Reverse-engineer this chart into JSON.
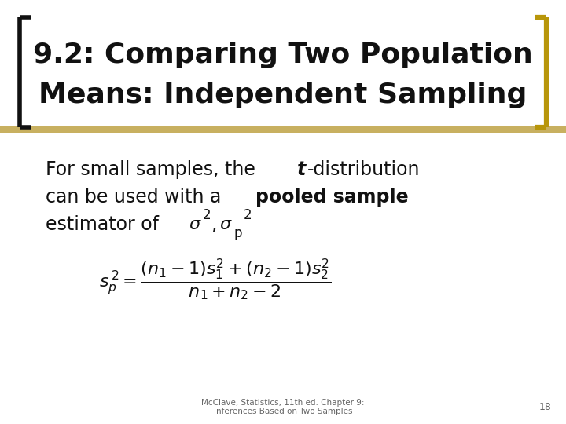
{
  "title_line1": "9.2: Comparing Two Population",
  "title_line2": "Means: Independent Sampling",
  "title_color": "#111111",
  "stripe_color": "#c8b060",
  "left_bracket_color": "#111111",
  "right_bracket_color": "#b8960a",
  "footer_text": "McClave, Statistics, 11th ed. Chapter 9:\nInferences Based on Two Samples",
  "footer_page": "18",
  "bg_color": "#ffffff",
  "text_color": "#111111",
  "footer_color": "#666666",
  "title_fontsize": 26,
  "body_fontsize": 17,
  "formula_fontsize": 16
}
